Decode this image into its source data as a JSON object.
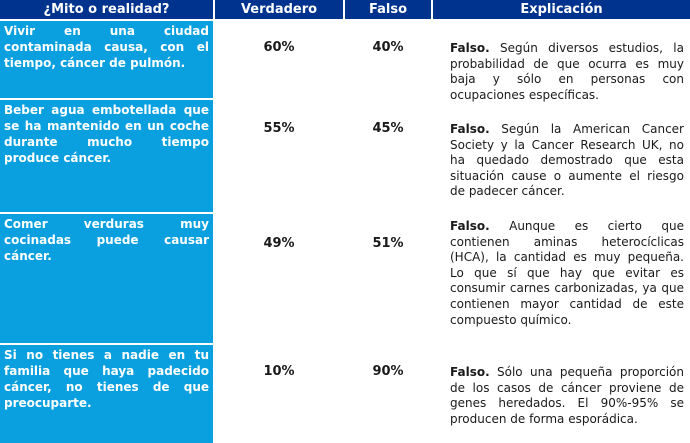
{
  "headers": {
    "myth": "¿Mito o realidad?",
    "true": "Verdadero",
    "false": "Falso",
    "explanation": "Explicación"
  },
  "rows": [
    {
      "myth": "Vivir en una ciudad contaminada causa, con el tiempo, cáncer de pulmón.",
      "true_pct": "60%",
      "false_pct": "40%",
      "verdict": "Falso.",
      "explanation": "Según diversos estudios, la probabilidad de que ocurra es muy baja y sólo en personas con ocupaciones específicas."
    },
    {
      "myth": "Beber agua embotellada que se ha mantenido en un coche durante mucho tiempo produce cáncer.",
      "true_pct": "55%",
      "false_pct": "45%",
      "verdict": "Falso.",
      "explanation": "Según la American Cancer Society y la Cancer Research UK, no ha quedado demostrado que esta situación cause o aumente el riesgo de padecer cáncer."
    },
    {
      "myth": "Comer verduras muy cocinadas puede causar cáncer.",
      "true_pct": "49%",
      "false_pct": "51%",
      "verdict": "Falso.",
      "explanation": "Aunque es cierto que contienen aminas heterocíclicas (HCA), la cantidad es muy pequeña. Lo que sí que hay que evitar es consumir carnes carbonizadas, ya que contienen mayor cantidad de este compuesto químico."
    },
    {
      "myth": "Si no tienes a nadie en tu familia que haya padecido cáncer, no tienes de que preocuparte.",
      "true_pct": "10%",
      "false_pct": "90%",
      "verdict": "Falso.",
      "explanation": "Sólo una pequeña proporción de los casos de cáncer proviene de genes heredados. El 90%-95% se producen de forma esporádica."
    }
  ]
}
